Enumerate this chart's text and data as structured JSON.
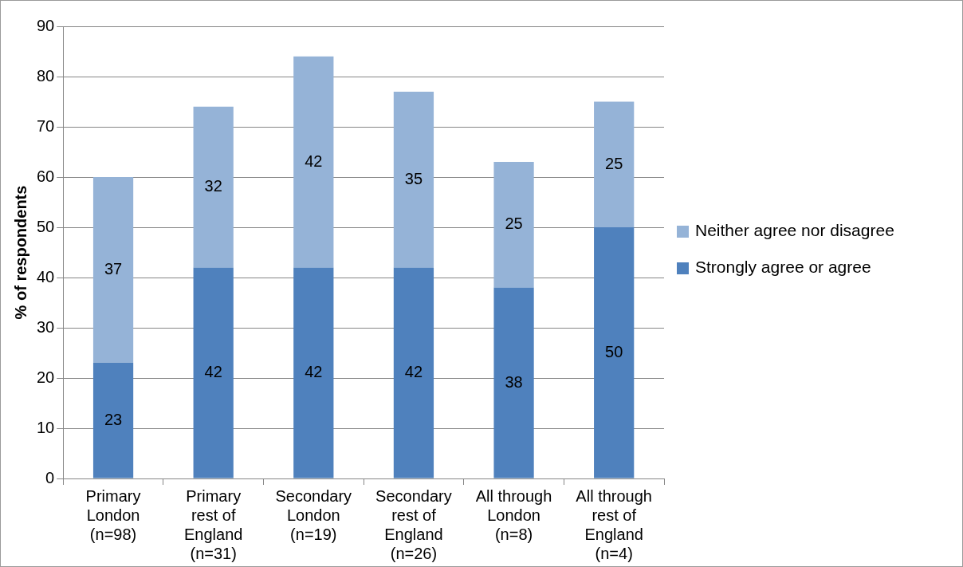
{
  "chart_data": {
    "type": "bar",
    "stacked": true,
    "ylabel": "% of respondents",
    "categories": [
      "Primary London (n=98)",
      "Primary rest of England (n=31)",
      "Secondary London (n=19)",
      "Secondary rest of England (n=26)",
      "All through London (n=8)",
      "All through rest of England (n=4)"
    ],
    "series": [
      {
        "name": "Strongly agree or agree",
        "color": "#4f81bd",
        "values": [
          23,
          42,
          42,
          42,
          38,
          50
        ]
      },
      {
        "name": "Neither agree nor disagree",
        "color": "#95b3d7",
        "values": [
          37,
          32,
          42,
          35,
          25,
          25
        ]
      }
    ],
    "ylim": [
      0,
      90
    ],
    "yticks": [
      0,
      10,
      20,
      30,
      40,
      50,
      60,
      70,
      80,
      90
    ],
    "grid": "y",
    "legend": "right",
    "data_labels": true
  }
}
